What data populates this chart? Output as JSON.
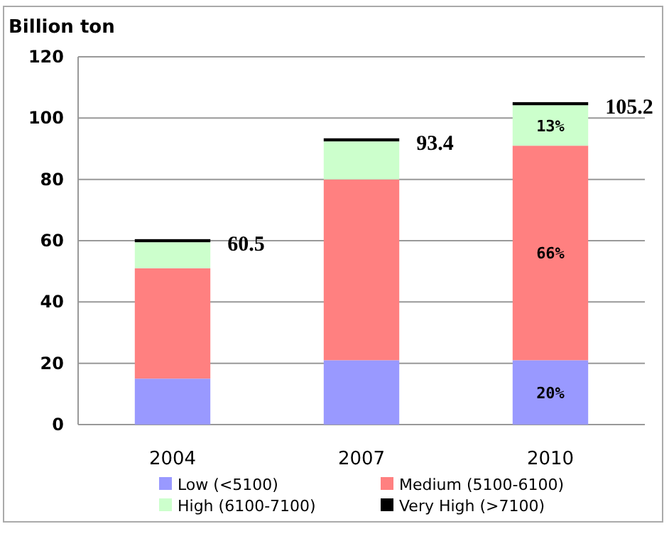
{
  "chart_data": {
    "type": "bar",
    "stacked": true,
    "ylabel": "Billion ton",
    "categories": [
      "2004",
      "2007",
      "2010"
    ],
    "series": [
      {
        "name": "Low (<5100)",
        "color": "#9999ff",
        "values": [
          15,
          21,
          21
        ]
      },
      {
        "name": "Medium (5100-6100)",
        "color": "#ff8080",
        "values": [
          36,
          59,
          70
        ]
      },
      {
        "name": "High (6100-7100)",
        "color": "#ccffcc",
        "values": [
          8.5,
          12.4,
          13.2
        ]
      },
      {
        "name": "Very High (>7100)",
        "color": "#000000",
        "values": [
          1,
          1,
          1
        ]
      }
    ],
    "annotations": [
      "20%",
      "66%",
      "13%"
    ],
    "totals": [
      "60.5",
      "93.4",
      "105.2"
    ],
    "ylim": [
      0,
      120
    ],
    "yticks": [
      0,
      20,
      40,
      60,
      80,
      100,
      120
    ],
    "grid": "y",
    "legend": "bottom"
  }
}
